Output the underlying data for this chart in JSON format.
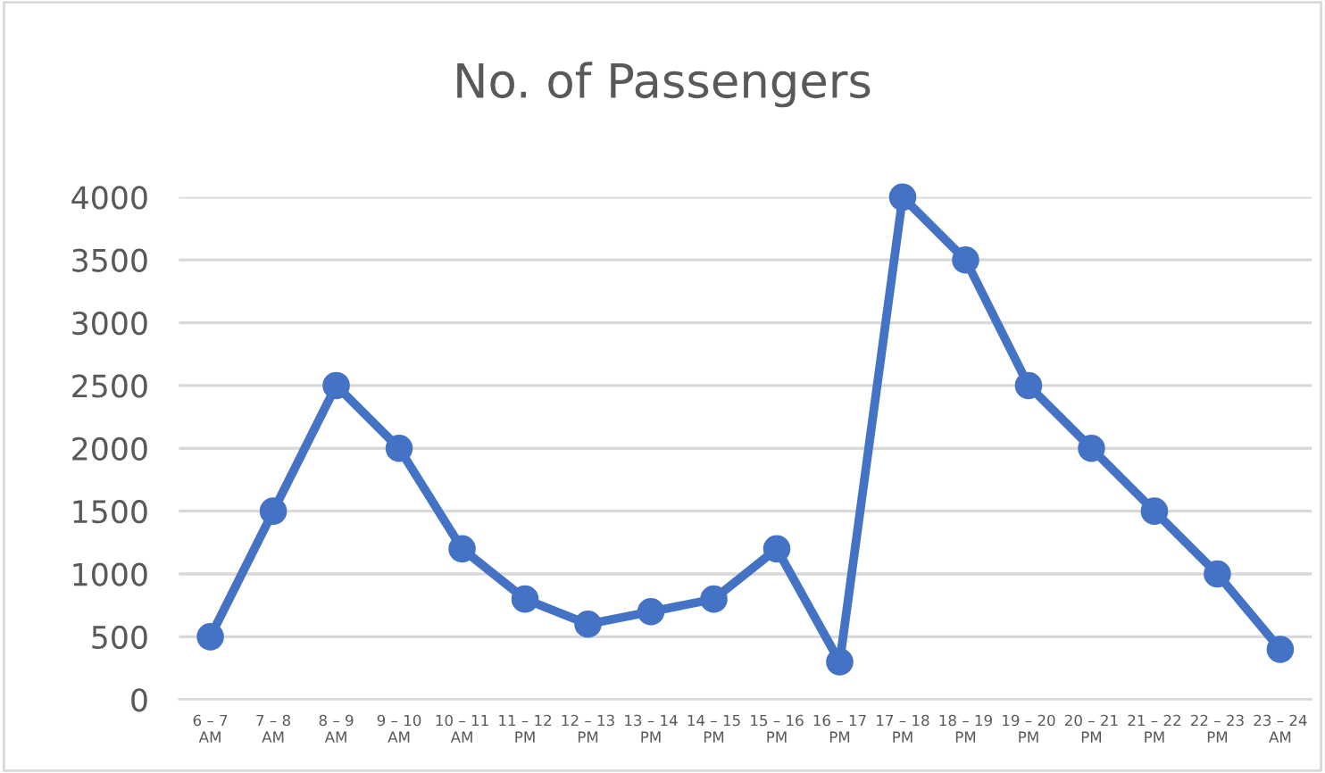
{
  "chart_data": {
    "type": "line",
    "title": "No. of Passengers",
    "categories": [
      "6 – 7\nAM",
      "7 – 8\nAM",
      "8 – 9\nAM",
      "9 – 10\nAM",
      "10 – 11\nAM",
      "11 – 12\nPM",
      "12 – 13\nPM",
      "13 – 14\nPM",
      "14 – 15\nPM",
      "15 – 16\nPM",
      "16 – 17\nPM",
      "17 – 18\nPM",
      "18 – 19\nPM",
      "19 – 20\nPM",
      "20 – 21\nPM",
      "21 – 22\nPM",
      "22 – 23\nPM",
      "23 – 24\nAM"
    ],
    "series": [
      {
        "color": "#4472c4",
        "values": [
          500,
          1500,
          2500,
          2000,
          1200,
          800,
          600,
          700,
          800,
          1200,
          300,
          4000,
          3500,
          2500,
          2000,
          1500,
          1000,
          400
        ]
      }
    ],
    "ylim": [
      0,
      4000
    ],
    "yticks": [
      0,
      500,
      1000,
      1500,
      2000,
      2500,
      3000,
      3500,
      4000
    ],
    "grid": "y",
    "marker": "circle",
    "line_style": "solid"
  }
}
